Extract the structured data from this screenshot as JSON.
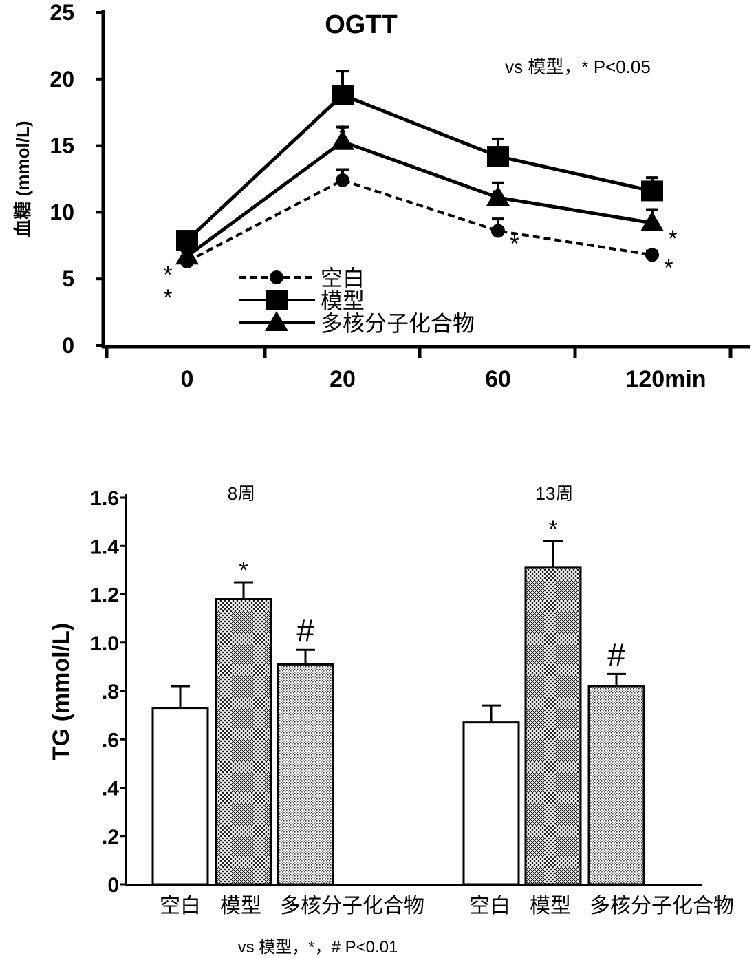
{
  "chart_data": [
    {
      "type": "line",
      "title": "OGTT",
      "annotation": "vs 模型，* P<0.05",
      "ylabel": "血糖 (mmol/L)",
      "xlabel": "",
      "categories": [
        "0",
        "20",
        "60",
        "120min"
      ],
      "ylim": [
        0,
        25
      ],
      "yticks": [
        "0",
        "5",
        "10",
        "15",
        "20",
        "25"
      ],
      "legend_position": "bottom-center",
      "series": [
        {
          "name": "空白",
          "marker": "circle",
          "dash": true,
          "values": [
            6.3,
            12.4,
            8.6,
            6.8
          ],
          "errors": [
            0.3,
            0.8,
            0.9,
            0.3
          ],
          "sig": [
            "*",
            "*",
            "*",
            "*"
          ]
        },
        {
          "name": "模型",
          "marker": "square",
          "dash": false,
          "values": [
            7.9,
            18.8,
            14.2,
            11.6
          ],
          "errors": [
            0.4,
            1.8,
            1.3,
            1.0
          ],
          "sig": [
            "",
            "",
            "",
            ""
          ]
        },
        {
          "name": "多核分子化合物",
          "marker": "triangle",
          "dash": false,
          "values": [
            6.7,
            15.3,
            11.1,
            9.2
          ],
          "errors": [
            0.4,
            1.1,
            1.1,
            1.0
          ],
          "sig": [
            "*",
            "*",
            "*",
            "*"
          ]
        }
      ]
    },
    {
      "type": "bar",
      "ylabel": "TG (mmol/L)",
      "ylim": [
        0,
        1.6
      ],
      "yticks": [
        "0",
        ".2",
        ".4",
        ".6",
        ".8",
        "1.0",
        "1.2",
        "1.4",
        "1.6"
      ],
      "groups": [
        "8周",
        "13周"
      ],
      "categories": [
        "空白",
        "模型",
        "多核分子化合物"
      ],
      "category_labels": [
        [
          "空白",
          "模型",
          "多核分子化合物"
        ],
        [
          "空白",
          "模型",
          "多核分子化合物"
        ]
      ],
      "footnote": "vs 模型，*，# P<0.01",
      "series": [
        {
          "group": "8周",
          "values": [
            0.73,
            1.18,
            0.91
          ],
          "errors": [
            0.09,
            0.07,
            0.06
          ],
          "sig": [
            "",
            "*",
            "#"
          ]
        },
        {
          "group": "13周",
          "values": [
            0.67,
            1.31,
            0.82
          ],
          "errors": [
            0.07,
            0.11,
            0.05
          ],
          "sig": [
            "",
            "*",
            "#"
          ]
        }
      ]
    }
  ]
}
